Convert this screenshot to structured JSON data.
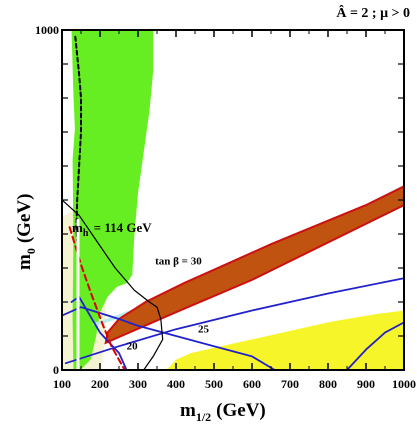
{
  "chart_data": {
    "type": "area",
    "title": "Â = 2 ; μ > 0",
    "xlabel": "m",
    "xlabel_sub": "1/2",
    "xlabel_unit": "(GeV)",
    "ylabel": "m",
    "ylabel_sub": "0",
    "ylabel_unit": "(GeV)",
    "xlim": [
      100,
      1000
    ],
    "ylim": [
      0,
      1000
    ],
    "x_ticks": [
      100,
      200,
      300,
      400,
      500,
      600,
      700,
      800,
      900,
      1000
    ],
    "x_tick_labels": [
      "100",
      "200",
      "300",
      "400",
      "500",
      "600",
      "700",
      "800",
      "900",
      "1000"
    ],
    "y_ticks": [
      0,
      1000
    ],
    "y_tick_labels": [
      "0",
      "1000"
    ],
    "colors": {
      "green_region": "#66ee22",
      "brown_region": "#c0530f",
      "brown_border": "#cc1111",
      "cyan_strip": "#b8ecec",
      "yellow_region": "#f6f52a",
      "cream_region": "#f4f3d2",
      "tanbeta_contours": "#2222cc",
      "higgs_contour": "#000000",
      "red_dashed": "#dd0000",
      "chargino_dashed": "#000000"
    },
    "regions": [
      {
        "name": "green",
        "points": [
          [
            125,
            1000
          ],
          [
            340,
            1000
          ],
          [
            340,
            880
          ],
          [
            330,
            760
          ],
          [
            315,
            640
          ],
          [
            300,
            520
          ],
          [
            290,
            390
          ],
          [
            285,
            280
          ],
          [
            270,
            255
          ],
          [
            245,
            245
          ],
          [
            220,
            215
          ],
          [
            200,
            170
          ],
          [
            190,
            100
          ],
          [
            175,
            30
          ],
          [
            148,
            0
          ],
          [
            130,
            0
          ],
          [
            128,
            150
          ],
          [
            130,
            380
          ],
          [
            128,
            620
          ],
          [
            134,
            710
          ],
          [
            130,
            810
          ],
          [
            125,
            1000
          ]
        ]
      },
      {
        "name": "yellow",
        "points": [
          [
            375,
            0
          ],
          [
            1000,
            0
          ],
          [
            1000,
            175
          ],
          [
            930,
            165
          ],
          [
            850,
            150
          ],
          [
            800,
            140
          ],
          [
            740,
            125
          ],
          [
            680,
            110
          ],
          [
            620,
            95
          ],
          [
            560,
            80
          ],
          [
            500,
            65
          ],
          [
            440,
            50
          ],
          [
            400,
            30
          ],
          [
            375,
            0
          ]
        ]
      },
      {
        "name": "brown",
        "points": [
          [
            215,
            80
          ],
          [
            400,
            170
          ],
          [
            600,
            265
          ],
          [
            800,
            375
          ],
          [
            1000,
            485
          ],
          [
            1000,
            540
          ],
          [
            900,
            485
          ],
          [
            780,
            430
          ],
          [
            650,
            370
          ],
          [
            540,
            315
          ],
          [
            420,
            255
          ],
          [
            320,
            200
          ],
          [
            250,
            150
          ],
          [
            220,
            110
          ],
          [
            215,
            80
          ]
        ]
      },
      {
        "name": "cyan",
        "points": [
          [
            190,
            130
          ],
          [
            275,
            160
          ],
          [
            400,
            210
          ],
          [
            540,
            275
          ],
          [
            690,
            345
          ],
          [
            850,
            430
          ],
          [
            1000,
            515
          ],
          [
            1000,
            545
          ],
          [
            850,
            460
          ],
          [
            700,
            390
          ],
          [
            550,
            315
          ],
          [
            410,
            240
          ],
          [
            300,
            185
          ],
          [
            230,
            155
          ],
          [
            190,
            140
          ],
          [
            180,
            135
          ],
          [
            190,
            130
          ]
        ]
      },
      {
        "name": "cream",
        "points": [
          [
            100,
            0
          ],
          [
            100,
            450
          ],
          [
            130,
            470
          ],
          [
            160,
            440
          ],
          [
            200,
            380
          ],
          [
            210,
            300
          ],
          [
            215,
            200
          ],
          [
            215,
            120
          ],
          [
            210,
            60
          ],
          [
            200,
            0
          ]
        ]
      }
    ],
    "lines": [
      {
        "name": "tan-beta-30",
        "label": "tan β = 30",
        "style": "solid",
        "points": [
          [
            110,
            20
          ],
          [
            250,
            70
          ],
          [
            400,
            120
          ],
          [
            600,
            175
          ],
          [
            800,
            225
          ],
          [
            1000,
            270
          ]
        ]
      },
      {
        "name": "tan-beta-25",
        "label": "25",
        "style": "solid",
        "points": [
          [
            100,
            160
          ],
          [
            150,
            185
          ],
          [
            250,
            150
          ],
          [
            300,
            130
          ],
          [
            400,
            100
          ],
          [
            500,
            70
          ],
          [
            600,
            40
          ],
          [
            660,
            0
          ]
        ]
      },
      {
        "name": "tan-beta-20",
        "label": "20",
        "style": "solid",
        "points": [
          [
            125,
            200
          ],
          [
            145,
            215
          ],
          [
            200,
            110
          ],
          [
            250,
            50
          ],
          [
            270,
            0
          ]
        ]
      },
      {
        "name": "tan-beta-40",
        "label": "",
        "style": "solid",
        "points": [
          [
            850,
            0
          ],
          [
            900,
            60
          ],
          [
            950,
            110
          ],
          [
            1000,
            140
          ]
        ]
      },
      {
        "name": "higgs-114",
        "label": "m",
        "label_sub": "h",
        "label_rest": " = 114 GeV",
        "style": "solid",
        "points": [
          [
            100,
            500
          ],
          [
            145,
            455
          ],
          [
            200,
            365
          ],
          [
            240,
            300
          ],
          [
            290,
            235
          ],
          [
            330,
            200
          ],
          [
            350,
            185
          ],
          [
            360,
            150
          ],
          [
            365,
            90
          ],
          [
            340,
            40
          ],
          [
            315,
            0
          ]
        ]
      },
      {
        "name": "red-dashed",
        "label": "",
        "style": "dashed",
        "points": [
          [
            120,
            420
          ],
          [
            150,
            310
          ],
          [
            175,
            230
          ],
          [
            205,
            140
          ],
          [
            230,
            70
          ],
          [
            265,
            0
          ]
        ]
      },
      {
        "name": "black-dashed",
        "label": "",
        "style": "dotted",
        "points": [
          [
            135,
            980
          ],
          [
            145,
            870
          ],
          [
            150,
            800
          ],
          [
            150,
            700
          ],
          [
            145,
            600
          ],
          [
            140,
            500
          ],
          [
            138,
            420
          ],
          [
            140,
            380
          ]
        ]
      },
      {
        "name": "white-vertical",
        "label": "",
        "style": "white",
        "points": [
          [
            142,
            0
          ],
          [
            142,
            440
          ]
        ]
      }
    ],
    "annotations": [
      {
        "text": "tan β = 30",
        "at": [
          345,
          310
        ]
      },
      {
        "text": "25",
        "at": [
          458,
          110
        ]
      },
      {
        "text": "20",
        "at": [
          270,
          60
        ]
      }
    ],
    "legend": "none",
    "grid": false
  }
}
